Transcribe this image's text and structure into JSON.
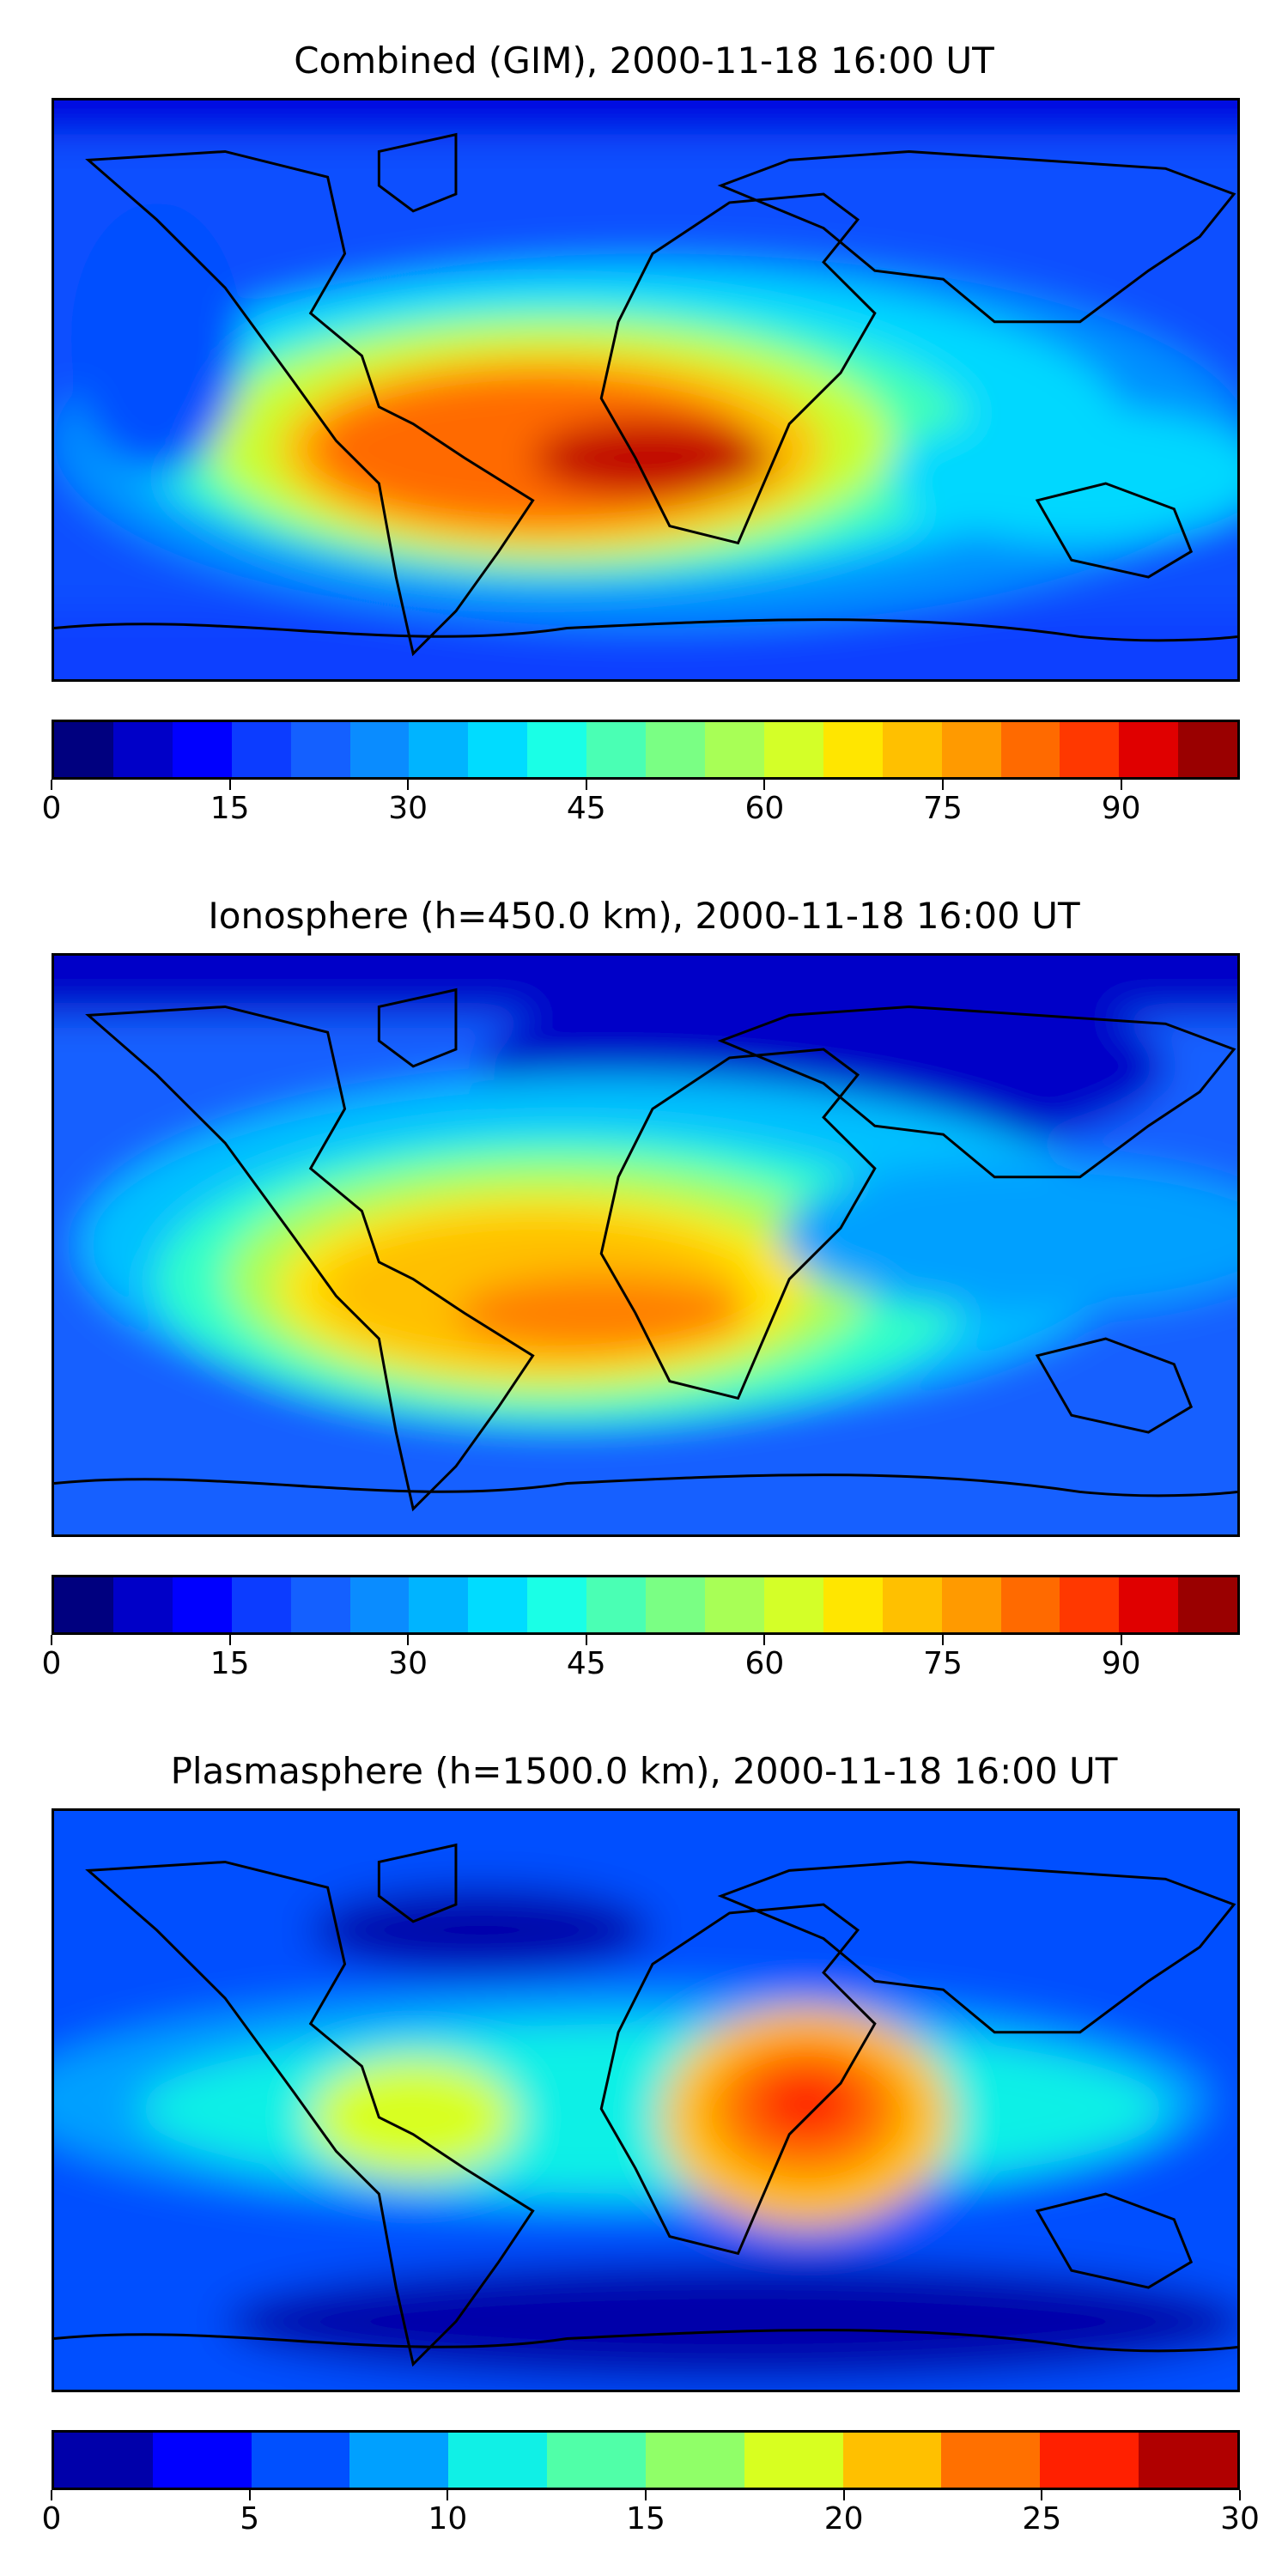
{
  "panels": [
    {
      "title": "Combined (GIM), 2000-11-18 16:00 UT",
      "colorbar": {
        "range": [
          0,
          100
        ],
        "ticks": [
          "0",
          "15",
          "30",
          "45",
          "60",
          "75",
          "90"
        ],
        "tick_values": [
          0,
          15,
          30,
          45,
          60,
          75,
          90
        ],
        "colors": [
          "#00007f",
          "#0000c8",
          "#0000ff",
          "#0c3cff",
          "#1460ff",
          "#0a8cff",
          "#00b4ff",
          "#00dcff",
          "#1affe6",
          "#4affb4",
          "#7aff84",
          "#a8ff56",
          "#d4ff28",
          "#ffe600",
          "#ffc000",
          "#ff9a00",
          "#ff6a00",
          "#ff3800",
          "#e00000",
          "#9a0000"
        ]
      }
    },
    {
      "title": "Ionosphere  (h=450.0 km), 2000-11-18 16:00 UT",
      "colorbar": {
        "range": [
          0,
          100
        ],
        "ticks": [
          "0",
          "15",
          "30",
          "45",
          "60",
          "75",
          "90"
        ],
        "tick_values": [
          0,
          15,
          30,
          45,
          60,
          75,
          90
        ],
        "colors": [
          "#00007f",
          "#0000c8",
          "#0000ff",
          "#0c3cff",
          "#1460ff",
          "#0a8cff",
          "#00b4ff",
          "#00dcff",
          "#1affe6",
          "#4affb4",
          "#7aff84",
          "#a8ff56",
          "#d4ff28",
          "#ffe600",
          "#ffc000",
          "#ff9a00",
          "#ff6a00",
          "#ff3800",
          "#e00000",
          "#9a0000"
        ]
      }
    },
    {
      "title": "Plasmasphere (h=1500.0 km), 2000-11-18 16:00 UT",
      "colorbar": {
        "range": [
          0,
          30
        ],
        "ticks": [
          "0",
          "5",
          "10",
          "15",
          "20",
          "25",
          "30"
        ],
        "tick_values": [
          0,
          5,
          10,
          15,
          20,
          25,
          30
        ],
        "colors": [
          "#0000aa",
          "#0000ff",
          "#0050ff",
          "#00a0ff",
          "#10f0e6",
          "#50ffa8",
          "#90ff68",
          "#d8ff20",
          "#ffc000",
          "#ff7000",
          "#ff2000",
          "#b00000"
        ]
      }
    }
  ]
}
